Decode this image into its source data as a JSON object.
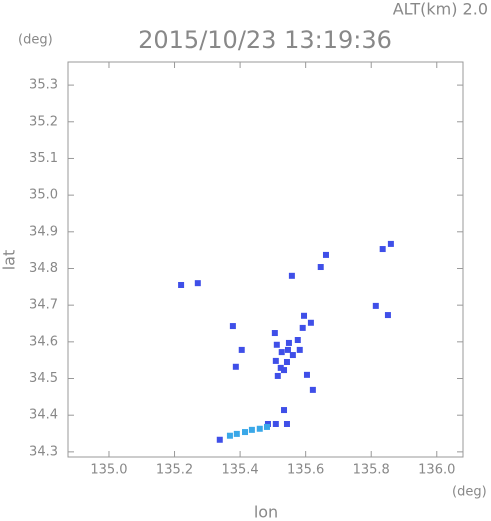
{
  "chart_data": {
    "type": "scatter",
    "title": "2015/10/23 13:19:36",
    "altitude_label": "ALT(km) 2.0",
    "y_unit": "(deg)",
    "x_unit": "(deg)",
    "xlabel": "lon",
    "ylabel": "lat",
    "xlim": [
      134.875,
      136.08
    ],
    "ylim": [
      34.286,
      35.363
    ],
    "xticks": [
      {
        "value": 135.0,
        "label": "135.0"
      },
      135.2,
      135.4,
      135.6,
      135.8,
      {
        "value": 136.0,
        "label": "136.0"
      }
    ],
    "yticks": [
      34.3,
      34.4,
      34.5,
      34.6,
      34.7,
      34.8,
      34.9,
      {
        "value": 35.0,
        "label": "35.0"
      },
      35.1,
      35.2,
      35.3
    ],
    "series": [
      {
        "color": "#3f4fe8",
        "x": [
          135.22,
          135.271,
          135.558,
          135.646,
          135.662,
          135.835,
          135.86,
          135.814,
          135.851,
          135.378,
          135.405,
          135.387,
          135.506,
          135.512,
          135.527,
          135.509,
          135.524,
          135.515,
          135.546,
          135.543,
          135.549,
          135.576,
          135.591,
          135.595,
          135.582,
          135.561,
          135.604,
          135.622,
          135.534,
          135.616,
          135.534,
          135.543,
          135.509,
          135.485,
          135.338
        ],
        "y": [
          34.755,
          34.76,
          34.78,
          34.804,
          34.837,
          34.853,
          34.867,
          34.698,
          34.673,
          34.643,
          34.578,
          34.532,
          34.624,
          34.592,
          34.572,
          34.548,
          34.529,
          34.507,
          34.578,
          34.545,
          34.597,
          34.605,
          34.638,
          34.671,
          34.578,
          34.564,
          34.51,
          34.469,
          34.523,
          34.652,
          34.414,
          34.376,
          34.376,
          34.376,
          34.333
        ]
      },
      {
        "color": "#3aa8e8",
        "x": [
          135.369,
          135.39,
          135.415,
          135.436,
          135.46,
          135.482
        ],
        "y": [
          34.344,
          34.349,
          34.354,
          34.36,
          34.363,
          34.368
        ]
      }
    ]
  }
}
